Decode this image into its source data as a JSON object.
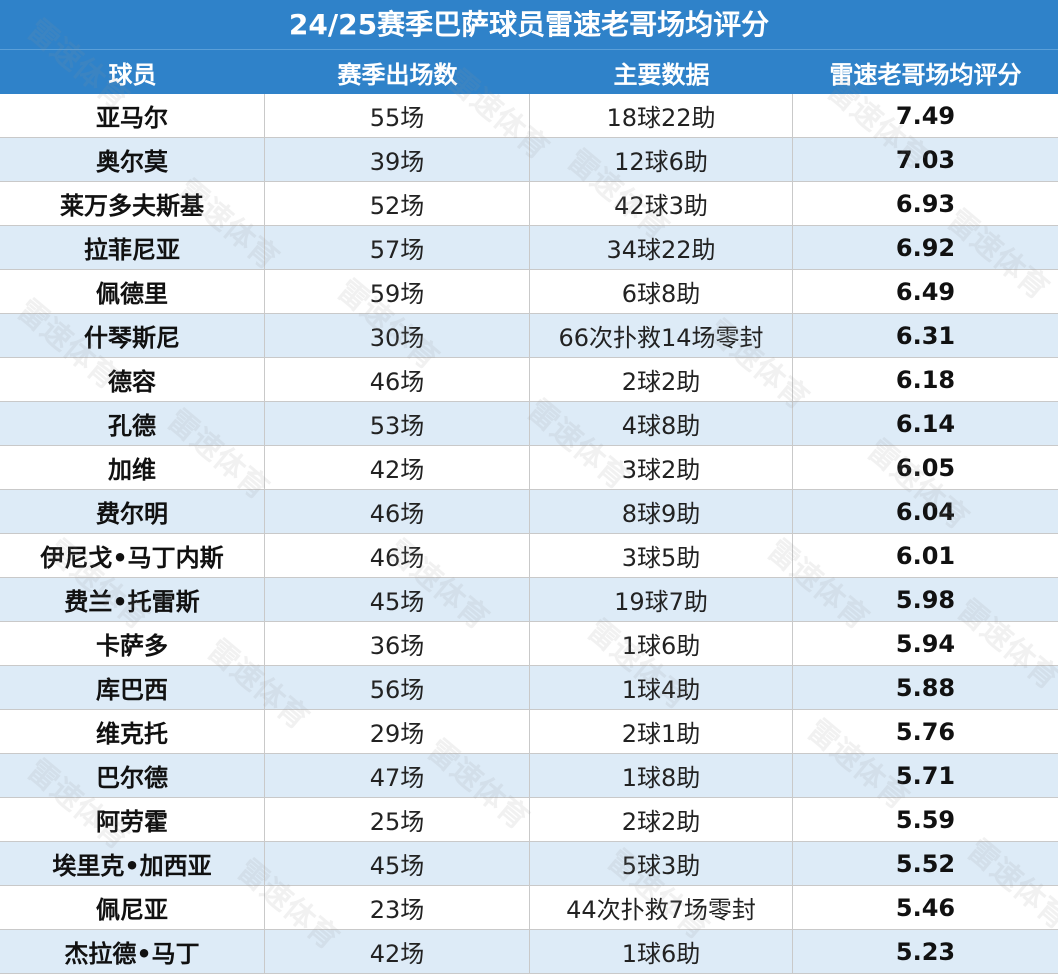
{
  "title": "24/25赛季巴萨球员雷速老哥场均评分",
  "headers": [
    "球员",
    "赛季出场数",
    "主要数据",
    "雷速老哥场均评分"
  ],
  "rows": [
    {
      "player": "亚马尔",
      "apps": "55场",
      "stats": "18球22助",
      "rating": "7.49"
    },
    {
      "player": "奥尔莫",
      "apps": "39场",
      "stats": "12球6助",
      "rating": "7.03"
    },
    {
      "player": "莱万多夫斯基",
      "apps": "52场",
      "stats": "42球3助",
      "rating": "6.93"
    },
    {
      "player": "拉菲尼亚",
      "apps": "57场",
      "stats": "34球22助",
      "rating": "6.92"
    },
    {
      "player": "佩德里",
      "apps": "59场",
      "stats": "6球8助",
      "rating": "6.49"
    },
    {
      "player": "什琴斯尼",
      "apps": "30场",
      "stats": "66次扑救14场零封",
      "rating": "6.31"
    },
    {
      "player": "德容",
      "apps": "46场",
      "stats": "2球2助",
      "rating": "6.18"
    },
    {
      "player": "孔德",
      "apps": "53场",
      "stats": "4球8助",
      "rating": "6.14"
    },
    {
      "player": "加维",
      "apps": "42场",
      "stats": "3球2助",
      "rating": "6.05"
    },
    {
      "player": "费尔明",
      "apps": "46场",
      "stats": "8球9助",
      "rating": "6.04"
    },
    {
      "player": "伊尼戈•马丁内斯",
      "apps": "46场",
      "stats": "3球5助",
      "rating": "6.01"
    },
    {
      "player": "费兰•托雷斯",
      "apps": "45场",
      "stats": "19球7助",
      "rating": "5.98"
    },
    {
      "player": "卡萨多",
      "apps": "36场",
      "stats": "1球6助",
      "rating": "5.94"
    },
    {
      "player": "库巴西",
      "apps": "56场",
      "stats": "1球4助",
      "rating": "5.88"
    },
    {
      "player": "维克托",
      "apps": "29场",
      "stats": "2球1助",
      "rating": "5.76"
    },
    {
      "player": "巴尔德",
      "apps": "47场",
      "stats": "1球8助",
      "rating": "5.71"
    },
    {
      "player": "阿劳霍",
      "apps": "25场",
      "stats": "2球2助",
      "rating": "5.59"
    },
    {
      "player": "埃里克•加西亚",
      "apps": "45场",
      "stats": "5球3助",
      "rating": "5.52"
    },
    {
      "player": "佩尼亚",
      "apps": "23场",
      "stats": "44次扑救7场零封",
      "rating": "5.46"
    },
    {
      "player": "杰拉德•马丁",
      "apps": "42场",
      "stats": "1球6助",
      "rating": "5.23"
    }
  ],
  "watermark": "雷速体育",
  "colors": {
    "header_bg": "#2f82c9",
    "stripe": "#ddebf7",
    "header_text": "#ffffff"
  }
}
